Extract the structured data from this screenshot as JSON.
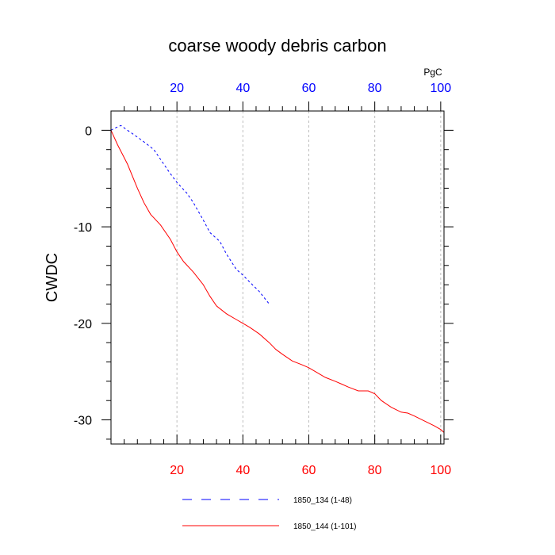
{
  "chart_data": {
    "type": "line",
    "title": "coarse woody debris carbon",
    "ylabel": "CWDC",
    "xlabel": "",
    "top_axis_unit": "PgC",
    "xlim": [
      0,
      101
    ],
    "ylim": [
      -32.5,
      2
    ],
    "x_ticks": [
      "20",
      "40",
      "60",
      "80",
      "100"
    ],
    "x_tick_values": [
      20,
      40,
      60,
      80,
      100
    ],
    "y_ticks": [
      "0",
      "-10",
      "-20",
      "-30"
    ],
    "y_tick_values": [
      0,
      -10,
      -20,
      -30
    ],
    "grid": "vertical-dashed",
    "colors": {
      "bottom_axis": "#ff0000",
      "top_axis": "#0000ff"
    },
    "series": [
      {
        "name": "1850_134 (1-48)",
        "color": "#0000ff",
        "dash": "dashed",
        "x": [
          0,
          1,
          3,
          5,
          8,
          10,
          13,
          15,
          18,
          20,
          23,
          25,
          28,
          30,
          33,
          35,
          38,
          40,
          42,
          45,
          48
        ],
        "y": [
          0,
          0.2,
          0.5,
          0,
          -0.7,
          -1.2,
          -2,
          -3,
          -4.5,
          -5.4,
          -6.5,
          -7.5,
          -9.3,
          -10.6,
          -11.5,
          -12.8,
          -14.4,
          -15,
          -15.7,
          -16.7,
          -18
        ]
      },
      {
        "name": "1850_144 (1-101)",
        "color": "#ff0000",
        "dash": "solid",
        "x": [
          0,
          2,
          5,
          8,
          10,
          12,
          15,
          18,
          20,
          22,
          25,
          28,
          30,
          32,
          35,
          38,
          40,
          42,
          45,
          48,
          50,
          52,
          55,
          58,
          60,
          62,
          65,
          68,
          70,
          72,
          75,
          78,
          80,
          82,
          85,
          88,
          90,
          92,
          95,
          98,
          100,
          101
        ],
        "y": [
          0,
          -1.5,
          -3.5,
          -6,
          -7.5,
          -8.7,
          -9.8,
          -11.3,
          -12.6,
          -13.6,
          -14.7,
          -16,
          -17.2,
          -18.2,
          -19,
          -19.6,
          -20,
          -20.4,
          -21.1,
          -22,
          -22.7,
          -23.2,
          -23.9,
          -24.3,
          -24.6,
          -25,
          -25.6,
          -26,
          -26.3,
          -26.6,
          -27,
          -27,
          -27.3,
          -28,
          -28.7,
          -29.2,
          -29.3,
          -29.6,
          -30.1,
          -30.6,
          -31,
          -31.3
        ]
      }
    ]
  }
}
